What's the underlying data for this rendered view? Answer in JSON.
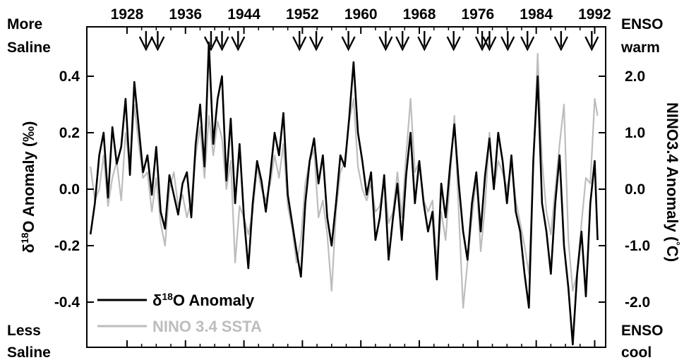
{
  "chart_data": {
    "type": "line",
    "x_axis": {
      "ticks": [
        1928,
        1936,
        1944,
        1952,
        1960,
        1968,
        1976,
        1984,
        1992
      ],
      "range": [
        1922.5,
        1993.5
      ],
      "position": "top"
    },
    "y_left": {
      "label_prefix": "δ",
      "label_sup": "18",
      "label_suffix": "O Anomaly (‰)",
      "ticks": [
        0.4,
        0.2,
        0.0,
        -0.2,
        -0.4
      ],
      "tick_labels": [
        "0.4",
        "0.2",
        "0.0",
        "-0.2",
        "-0.4"
      ],
      "range": [
        -0.56,
        0.575
      ],
      "inverted": false
    },
    "y_right": {
      "label_main": "NINO3.4 Anomaly (",
      "label_sup": "°",
      "label_end": "C)",
      "ticks": [
        2.0,
        1.0,
        0.0,
        -1.0,
        -2.0
      ],
      "tick_labels": [
        "2.0",
        "1.0",
        "0.0",
        "-1.0",
        "-2.0"
      ],
      "range": [
        -2.8,
        2.875
      ]
    },
    "corner_labels": {
      "top_left": [
        "More",
        "Saline"
      ],
      "bottom_left": [
        "Less",
        "Saline"
      ],
      "top_right": [
        "ENSO",
        "warm"
      ],
      "bottom_right": [
        "ENSO",
        "cool"
      ]
    },
    "arrow_years": [
      1930.6,
      1932.2,
      1939.5,
      1941.0,
      1943.2,
      1951.6,
      1953.9,
      1958.3,
      1963.4,
      1965.7,
      1968.7,
      1972.7,
      1976.6,
      1977.6,
      1980.1,
      1982.8,
      1987.4,
      1991.6
    ],
    "legend": {
      "position": "bottom-left",
      "entries": [
        {
          "prefix": "δ",
          "sup": "18",
          "suffix": "O Anomaly",
          "color": "#000000"
        },
        {
          "prefix": "",
          "sup": "",
          "suffix": "NINO 3.4 SSTA",
          "color": "#bdbdbd"
        }
      ]
    },
    "series": [
      {
        "name": "δ18O Anomaly",
        "color": "#000000",
        "axis": "left",
        "x": [
          1923.0,
          1923.6,
          1924.2,
          1924.8,
          1925.4,
          1926.0,
          1926.6,
          1927.2,
          1927.8,
          1928.4,
          1929.0,
          1929.6,
          1930.2,
          1930.8,
          1931.4,
          1932.0,
          1932.6,
          1933.2,
          1933.8,
          1934.4,
          1935.0,
          1935.6,
          1936.2,
          1936.8,
          1937.4,
          1938.0,
          1938.6,
          1939.2,
          1939.8,
          1940.4,
          1941.0,
          1941.6,
          1942.2,
          1942.8,
          1943.4,
          1944.0,
          1944.6,
          1945.2,
          1945.8,
          1946.4,
          1947.0,
          1947.6,
          1948.2,
          1948.8,
          1949.4,
          1950.0,
          1950.6,
          1951.2,
          1951.8,
          1952.4,
          1953.0,
          1953.6,
          1954.2,
          1954.8,
          1955.4,
          1956.0,
          1956.6,
          1957.2,
          1957.8,
          1958.4,
          1959.0,
          1959.6,
          1960.2,
          1960.8,
          1961.4,
          1962.0,
          1962.6,
          1963.2,
          1963.8,
          1964.4,
          1965.0,
          1965.6,
          1966.2,
          1966.8,
          1967.4,
          1968.0,
          1968.6,
          1969.2,
          1969.8,
          1970.4,
          1971.0,
          1971.6,
          1972.2,
          1972.8,
          1973.4,
          1974.0,
          1974.6,
          1975.2,
          1975.8,
          1976.4,
          1977.0,
          1977.6,
          1978.2,
          1978.8,
          1979.4,
          1980.0,
          1980.6,
          1981.2,
          1981.8,
          1982.4,
          1983.0,
          1983.6,
          1984.2,
          1984.8,
          1985.4,
          1986.0,
          1986.6,
          1987.2,
          1987.8,
          1988.4,
          1989.0,
          1989.6,
          1990.2,
          1990.8,
          1991.4,
          1992.0,
          1992.4
        ],
        "y": [
          -0.16,
          -0.05,
          0.12,
          0.2,
          -0.03,
          0.22,
          0.09,
          0.15,
          0.32,
          0.05,
          0.38,
          0.22,
          0.06,
          0.12,
          -0.02,
          0.15,
          -0.08,
          -0.14,
          0.05,
          -0.02,
          -0.09,
          0.02,
          0.06,
          -0.1,
          0.16,
          0.3,
          0.08,
          0.52,
          0.16,
          0.32,
          0.4,
          0.03,
          0.25,
          -0.05,
          0.16,
          -0.1,
          -0.28,
          -0.05,
          0.1,
          0.03,
          -0.08,
          0.05,
          0.2,
          0.12,
          0.27,
          -0.02,
          -0.12,
          -0.22,
          -0.31,
          -0.05,
          0.1,
          0.18,
          0.02,
          0.12,
          -0.1,
          -0.2,
          -0.05,
          0.12,
          0.08,
          0.25,
          0.45,
          0.2,
          0.1,
          -0.02,
          0.06,
          -0.18,
          -0.1,
          0.05,
          -0.25,
          -0.1,
          0.02,
          -0.18,
          0.05,
          0.2,
          -0.05,
          0.1,
          -0.05,
          -0.15,
          -0.08,
          -0.32,
          0.02,
          -0.1,
          0.08,
          0.23,
          0.02,
          -0.15,
          -0.25,
          -0.05,
          0.06,
          -0.15,
          0.05,
          0.18,
          0.0,
          0.2,
          0.1,
          -0.05,
          0.12,
          -0.08,
          -0.15,
          -0.3,
          -0.42,
          0.1,
          0.4,
          -0.05,
          -0.15,
          -0.3,
          -0.05,
          0.12,
          -0.2,
          -0.35,
          -0.55,
          -0.3,
          -0.15,
          -0.38,
          -0.05,
          0.1,
          -0.18
        ]
      },
      {
        "name": "NINO 3.4 SSTA",
        "color": "#bdbdbd",
        "axis": "right",
        "x": [
          1923.0,
          1923.6,
          1924.2,
          1924.8,
          1925.4,
          1926.0,
          1926.6,
          1927.2,
          1927.8,
          1928.4,
          1929.0,
          1929.6,
          1930.2,
          1930.8,
          1931.4,
          1932.0,
          1932.6,
          1933.2,
          1933.8,
          1934.4,
          1935.0,
          1935.6,
          1936.2,
          1936.8,
          1937.4,
          1938.0,
          1938.6,
          1939.2,
          1939.8,
          1940.4,
          1941.0,
          1941.6,
          1942.2,
          1942.8,
          1943.4,
          1944.0,
          1944.6,
          1945.2,
          1945.8,
          1946.4,
          1947.0,
          1947.6,
          1948.2,
          1948.8,
          1949.4,
          1950.0,
          1950.6,
          1951.2,
          1951.8,
          1952.4,
          1953.0,
          1953.6,
          1954.2,
          1954.8,
          1955.4,
          1956.0,
          1956.6,
          1957.2,
          1957.8,
          1958.4,
          1959.0,
          1959.6,
          1960.2,
          1960.8,
          1961.4,
          1962.0,
          1962.6,
          1963.2,
          1963.8,
          1964.4,
          1965.0,
          1965.6,
          1966.2,
          1966.8,
          1967.4,
          1968.0,
          1968.6,
          1969.2,
          1969.8,
          1970.4,
          1971.0,
          1971.6,
          1972.2,
          1972.8,
          1973.4,
          1974.0,
          1974.6,
          1975.2,
          1975.8,
          1976.4,
          1977.0,
          1977.6,
          1978.2,
          1978.8,
          1979.4,
          1980.0,
          1980.6,
          1981.2,
          1981.8,
          1982.4,
          1983.0,
          1983.6,
          1984.2,
          1984.8,
          1985.4,
          1986.0,
          1986.6,
          1987.2,
          1987.8,
          1988.4,
          1989.0,
          1989.6,
          1990.2,
          1990.8,
          1991.4,
          1992.0,
          1992.4
        ],
        "y": [
          0.4,
          -0.2,
          0.0,
          0.6,
          -0.3,
          0.2,
          0.5,
          -0.2,
          1.0,
          0.4,
          1.5,
          0.8,
          0.2,
          0.3,
          -0.4,
          0.2,
          -0.6,
          -1.0,
          0.0,
          0.3,
          -0.3,
          -0.1,
          -0.5,
          -0.2,
          0.6,
          1.1,
          0.2,
          1.3,
          0.6,
          1.2,
          0.9,
          0.0,
          0.5,
          -1.3,
          -0.3,
          -0.5,
          -0.8,
          -0.4,
          0.4,
          0.0,
          -0.2,
          0.1,
          0.6,
          0.2,
          0.8,
          -0.3,
          -0.7,
          -1.3,
          -0.9,
          0.1,
          0.5,
          0.7,
          -0.5,
          -0.2,
          -0.8,
          -1.8,
          -0.4,
          0.3,
          0.5,
          1.2,
          1.6,
          0.4,
          0.0,
          -0.2,
          0.1,
          -0.4,
          -0.3,
          0.2,
          -0.6,
          -0.4,
          0.3,
          -0.5,
          0.6,
          1.6,
          0.3,
          0.5,
          -0.2,
          -0.4,
          -0.2,
          -1.3,
          -0.4,
          -0.9,
          0.2,
          1.3,
          -0.4,
          -2.1,
          -1.3,
          -0.5,
          0.2,
          -1.1,
          -0.3,
          1.0,
          0.0,
          0.5,
          0.3,
          0.0,
          0.4,
          -0.2,
          -0.6,
          -1.0,
          -1.5,
          0.4,
          2.4,
          0.5,
          -0.4,
          -0.8,
          0.0,
          0.8,
          1.5,
          -0.9,
          -1.8,
          -1.5,
          -0.6,
          0.2,
          0.1,
          1.6,
          1.3
        ]
      }
    ]
  }
}
